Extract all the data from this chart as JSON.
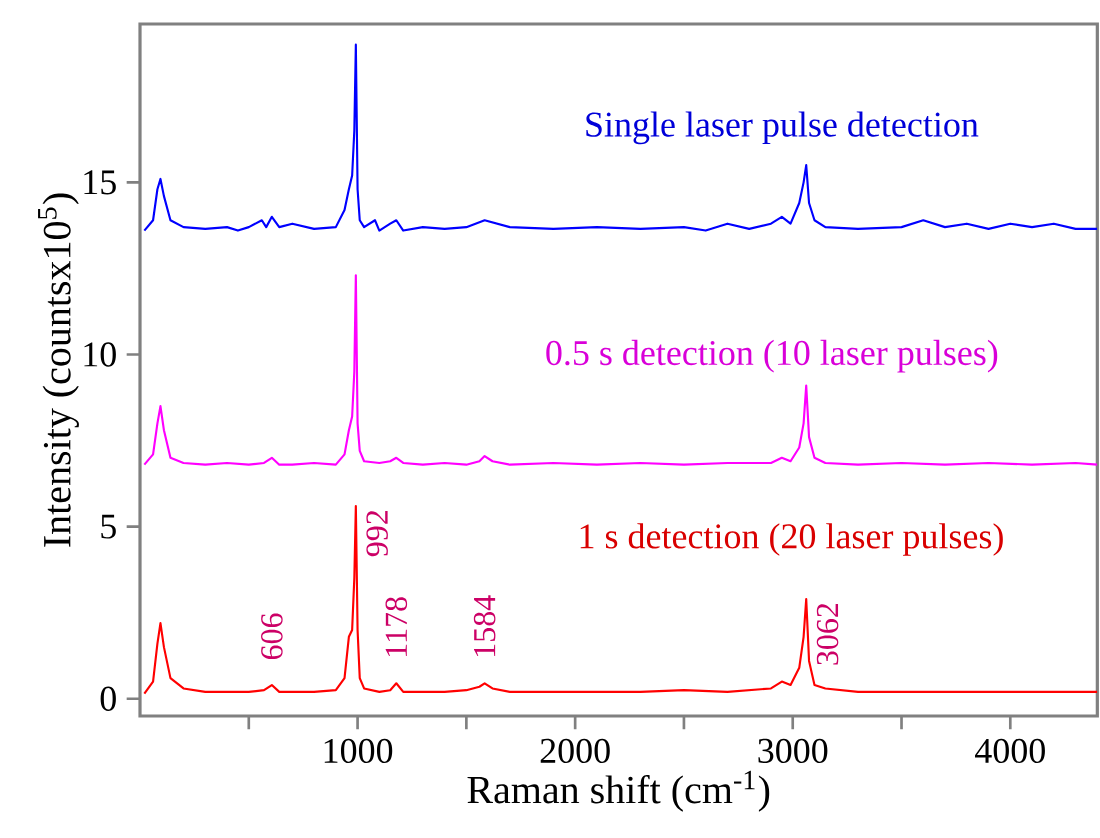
{
  "chart_data": {
    "type": "line",
    "xlabel": "Raman shift (cm$^{-1}$)",
    "ylabel": "Intensity (countsx10$^{5}$)",
    "xlim": [
      0,
      4400
    ],
    "ylim": [
      -0.5,
      19.6
    ],
    "xticks": [
      {
        "value": 500,
        "label": null
      },
      1000,
      {
        "value": 1500,
        "label": null
      },
      2000,
      {
        "value": 2500,
        "label": null
      },
      3000,
      {
        "value": 3500,
        "label": null
      },
      4000
    ],
    "yticks": [
      0,
      5,
      10,
      15
    ],
    "grid": false,
    "legend": false,
    "marker": "none",
    "line_style": "solid",
    "series": [
      {
        "name": "Single laser pulse detection",
        "color": "#0000ff",
        "x": [
          20,
          60,
          80,
          94,
          110,
          140,
          200,
          300,
          400,
          450,
          500,
          560,
          580,
          606,
          640,
          700,
          800,
          900,
          940,
          960,
          975,
          985,
          992,
          1000,
          1010,
          1030,
          1080,
          1100,
          1150,
          1178,
          1210,
          1300,
          1400,
          1500,
          1584,
          1700,
          1900,
          2100,
          2300,
          2500,
          2600,
          2700,
          2800,
          2900,
          2950,
          2990,
          3030,
          3050,
          3062,
          3075,
          3100,
          3150,
          3300,
          3500,
          3600,
          3700,
          3800,
          3900,
          4000,
          4100,
          4200,
          4300,
          4400
        ],
        "values": [
          13.6,
          13.9,
          14.8,
          15.1,
          14.6,
          13.9,
          13.7,
          13.65,
          13.7,
          13.6,
          13.7,
          13.9,
          13.7,
          14.0,
          13.7,
          13.8,
          13.65,
          13.7,
          14.2,
          14.8,
          15.2,
          16.5,
          19.0,
          14.8,
          13.9,
          13.7,
          13.9,
          13.6,
          13.8,
          13.9,
          13.6,
          13.7,
          13.65,
          13.7,
          13.9,
          13.7,
          13.65,
          13.7,
          13.65,
          13.7,
          13.6,
          13.8,
          13.65,
          13.8,
          14.0,
          13.8,
          14.4,
          15.0,
          15.5,
          14.4,
          13.9,
          13.7,
          13.65,
          13.7,
          13.9,
          13.7,
          13.8,
          13.65,
          13.8,
          13.7,
          13.8,
          13.65,
          13.65
        ]
      },
      {
        "name": "0.5 s detection (10 laser pulses)",
        "color": "#ff00ff",
        "x": [
          20,
          60,
          80,
          94,
          110,
          140,
          200,
          300,
          400,
          500,
          570,
          606,
          640,
          700,
          800,
          900,
          940,
          960,
          975,
          985,
          992,
          1000,
          1010,
          1030,
          1100,
          1150,
          1178,
          1210,
          1300,
          1400,
          1500,
          1560,
          1584,
          1620,
          1700,
          1900,
          2100,
          2300,
          2500,
          2700,
          2900,
          2950,
          2990,
          3030,
          3050,
          3062,
          3075,
          3100,
          3150,
          3300,
          3500,
          3700,
          3900,
          4100,
          4300,
          4400
        ],
        "values": [
          6.8,
          7.1,
          8.0,
          8.5,
          7.8,
          7.0,
          6.85,
          6.8,
          6.85,
          6.8,
          6.85,
          7.0,
          6.8,
          6.8,
          6.85,
          6.8,
          7.1,
          7.8,
          8.2,
          9.5,
          12.3,
          8.0,
          7.2,
          6.9,
          6.85,
          6.9,
          7.0,
          6.85,
          6.8,
          6.85,
          6.8,
          6.9,
          7.05,
          6.9,
          6.8,
          6.85,
          6.8,
          6.85,
          6.8,
          6.85,
          6.85,
          7.0,
          6.9,
          7.3,
          8.0,
          9.1,
          7.6,
          7.0,
          6.85,
          6.8,
          6.85,
          6.8,
          6.85,
          6.8,
          6.85,
          6.8
        ]
      },
      {
        "name": "1 s detection (20 laser pulses)",
        "color": "#ff0000",
        "x": [
          20,
          60,
          80,
          94,
          110,
          140,
          200,
          300,
          400,
          500,
          570,
          606,
          640,
          700,
          800,
          900,
          940,
          960,
          975,
          985,
          992,
          1000,
          1010,
          1030,
          1100,
          1150,
          1178,
          1210,
          1300,
          1400,
          1500,
          1560,
          1584,
          1620,
          1700,
          1900,
          2100,
          2300,
          2500,
          2700,
          2900,
          2950,
          2990,
          3030,
          3050,
          3062,
          3075,
          3100,
          3150,
          3300,
          3500,
          3700,
          3900,
          4100,
          4300,
          4400
        ],
        "values": [
          0.15,
          0.5,
          1.6,
          2.2,
          1.5,
          0.6,
          0.3,
          0.2,
          0.2,
          0.2,
          0.25,
          0.4,
          0.2,
          0.2,
          0.2,
          0.25,
          0.6,
          1.8,
          2.0,
          3.5,
          5.6,
          2.0,
          0.6,
          0.3,
          0.2,
          0.25,
          0.45,
          0.2,
          0.2,
          0.2,
          0.25,
          0.35,
          0.45,
          0.3,
          0.2,
          0.2,
          0.2,
          0.2,
          0.25,
          0.2,
          0.3,
          0.5,
          0.4,
          0.9,
          1.8,
          2.9,
          1.1,
          0.4,
          0.3,
          0.2,
          0.2,
          0.2,
          0.2,
          0.2,
          0.2,
          0.2
        ]
      }
    ],
    "annotations": [
      {
        "text": "606",
        "x": 606,
        "y": 0.4
      },
      {
        "text": "992",
        "x": 992,
        "y": 5.6
      },
      {
        "text": "1178",
        "x": 1178,
        "y": 0.45
      },
      {
        "text": "1584",
        "x": 1584,
        "y": 0.45
      },
      {
        "text": "3062",
        "x": 3062,
        "y": 2.9
      }
    ]
  }
}
